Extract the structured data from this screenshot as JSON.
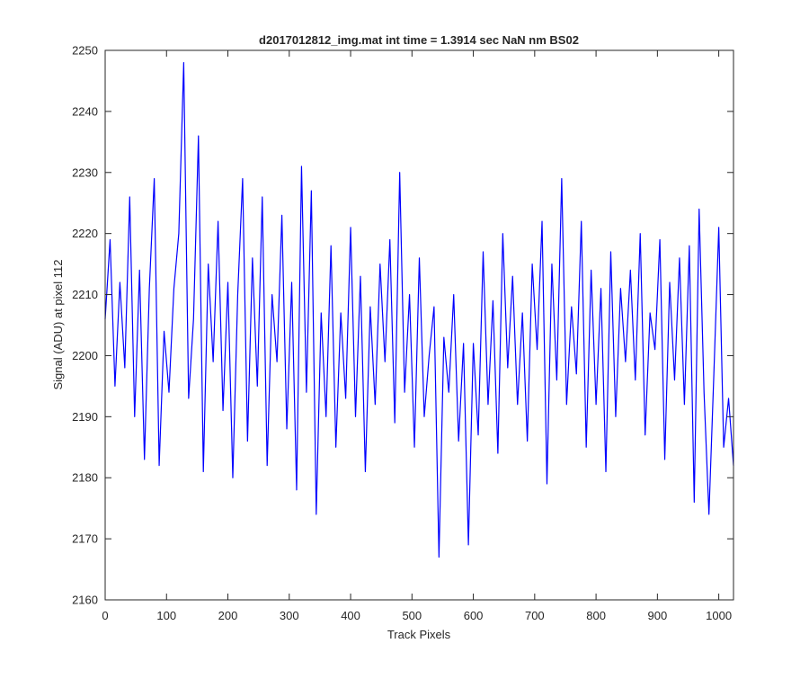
{
  "chart_data": {
    "type": "line",
    "title": "d2017012812_img.mat int time = 1.3914 sec  NaN nm BS02",
    "xlabel": "Track Pixels",
    "ylabel": "Signal (ADU) at pixel 112",
    "xlim": [
      0,
      1024
    ],
    "ylim": [
      2160,
      2250
    ],
    "xticks": [
      0,
      100,
      200,
      300,
      400,
      500,
      600,
      700,
      800,
      900,
      1000
    ],
    "yticks": [
      2160,
      2170,
      2180,
      2190,
      2200,
      2210,
      2220,
      2230,
      2240,
      2250
    ],
    "grid": false,
    "box": true,
    "line_color": "#0000ff",
    "series": [
      {
        "x": [
          0,
          8,
          16,
          24,
          32,
          40,
          48,
          56,
          64,
          72,
          80,
          88,
          96,
          104,
          112,
          120,
          128,
          136,
          144,
          152,
          160,
          168,
          176,
          184,
          192,
          200,
          208,
          216,
          224,
          232,
          240,
          248,
          256,
          264,
          272,
          280,
          288,
          296,
          304,
          312,
          320,
          328,
          336,
          344,
          352,
          360,
          368,
          376,
          384,
          392,
          400,
          408,
          416,
          424,
          432,
          440,
          448,
          456,
          464,
          472,
          480,
          488,
          496,
          504,
          512,
          520,
          528,
          536,
          544,
          552,
          560,
          568,
          576,
          584,
          592,
          600,
          608,
          616,
          624,
          632,
          640,
          648,
          656,
          664,
          672,
          680,
          688,
          696,
          704,
          712,
          720,
          728,
          736,
          744,
          752,
          760,
          768,
          776,
          784,
          792,
          800,
          808,
          816,
          824,
          832,
          840,
          848,
          856,
          864,
          872,
          880,
          888,
          896,
          904,
          912,
          920,
          928,
          936,
          944,
          952,
          960,
          968,
          976,
          984,
          992,
          1000,
          1008,
          1016,
          1024
        ],
        "values": [
          2206,
          2219,
          2195,
          2212,
          2198,
          2226,
          2190,
          2214,
          2183,
          2211,
          2229,
          2182,
          2204,
          2194,
          2211,
          2220,
          2248,
          2193,
          2206,
          2236,
          2181,
          2215,
          2199,
          2222,
          2191,
          2212,
          2180,
          2210,
          2229,
          2186,
          2216,
          2195,
          2226,
          2182,
          2210,
          2199,
          2223,
          2188,
          2212,
          2178,
          2231,
          2194,
          2227,
          2174,
          2207,
          2190,
          2218,
          2185,
          2207,
          2193,
          2221,
          2190,
          2213,
          2181,
          2208,
          2192,
          2215,
          2199,
          2219,
          2189,
          2230,
          2194,
          2210,
          2185,
          2216,
          2190,
          2200,
          2208,
          2167,
          2203,
          2194,
          2210,
          2186,
          2202,
          2169,
          2202,
          2187,
          2217,
          2192,
          2209,
          2184,
          2220,
          2198,
          2213,
          2192,
          2207,
          2186,
          2215,
          2201,
          2222,
          2179,
          2215,
          2196,
          2229,
          2192,
          2208,
          2197,
          2222,
          2185,
          2214,
          2192,
          2211,
          2181,
          2217,
          2190,
          2211,
          2199,
          2214,
          2196,
          2220,
          2187,
          2207,
          2201,
          2219,
          2183,
          2212,
          2196,
          2216,
          2192,
          2218,
          2176,
          2224,
          2194,
          2174,
          2197,
          2221,
          2185,
          2193,
          2182
        ]
      }
    ]
  }
}
